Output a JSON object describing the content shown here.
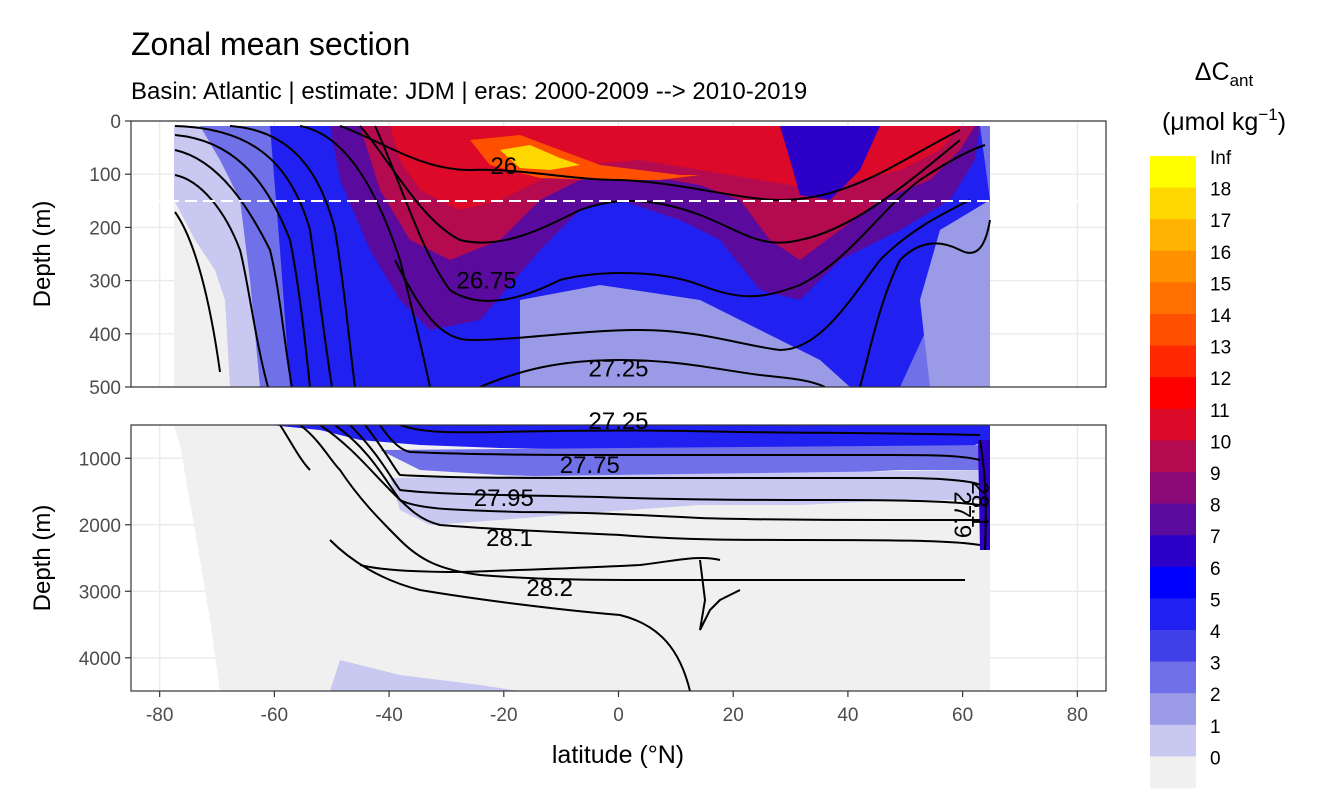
{
  "chart_data": {
    "type": "heatmap",
    "title": "Zonal mean section",
    "subtitle": "Basin: Atlantic | estimate: JDM  | eras: 2000-2009 --> 2010-2019",
    "xlabel": "latitude (°N)",
    "ylabel": "Depth (m)",
    "xlim": [
      -85,
      85
    ],
    "x_ticks": [
      -80,
      -60,
      -40,
      -20,
      0,
      20,
      40,
      60,
      80
    ],
    "x_tick_labels": [
      "-80",
      "-60",
      "-40",
      "-20",
      "0",
      "20",
      "40",
      "60",
      "80"
    ],
    "panels": [
      {
        "name": "upper",
        "ylim": [
          0,
          500
        ],
        "y_ticks": [
          0,
          100,
          200,
          300,
          400,
          500
        ],
        "y_tick_labels": [
          "0",
          "100",
          "200",
          "300",
          "400",
          "500"
        ],
        "reference_line_depth": 150
      },
      {
        "name": "lower",
        "ylim": [
          500,
          4500
        ],
        "y_ticks": [
          1000,
          2000,
          3000,
          4000
        ],
        "y_tick_labels": [
          "1000",
          "2000",
          "3000",
          "4000"
        ]
      }
    ],
    "legend": {
      "title_main": "ΔC",
      "title_sub": "ant",
      "title_unit": "(μmol kg",
      "title_unit_exp": "−1",
      "title_unit_close": ")",
      "breaks": [
        "Inf",
        "18",
        "17",
        "16",
        "15",
        "14",
        "13",
        "12",
        "11",
        "10",
        "9",
        "8",
        "7",
        "6",
        "5",
        "4",
        "3",
        "2",
        "1",
        "0"
      ],
      "colors": [
        "#FFFF00",
        "#FFD700",
        "#FFB300",
        "#FF9000",
        "#FF7000",
        "#FF5000",
        "#FF2800",
        "#FF0000",
        "#DC0A28",
        "#B40A50",
        "#8C0A78",
        "#5A0A9C",
        "#2D00C8",
        "#0000FF",
        "#2020F0",
        "#4040E8",
        "#7070E8",
        "#9A9AE6",
        "#C8C8F0",
        "#F0F0F0"
      ]
    },
    "isopycnals": [
      {
        "label": "26",
        "lat": -20,
        "depth": 85,
        "panel": "upper"
      },
      {
        "label": "26.75",
        "lat": -23,
        "depth": 300,
        "panel": "upper"
      },
      {
        "label": "27.25",
        "lat": 0,
        "depth": 465,
        "panel": "upper"
      },
      {
        "label": "27.25",
        "lat": 0,
        "depth": 440,
        "panel": "lower"
      },
      {
        "label": "27.75",
        "lat": -5,
        "depth": 1100,
        "panel": "lower"
      },
      {
        "label": "27.95",
        "lat": -20,
        "depth": 1600,
        "panel": "lower"
      },
      {
        "label": "28.1",
        "lat": -19,
        "depth": 2200,
        "panel": "lower"
      },
      {
        "label": "28.2",
        "lat": -12,
        "depth": 2950,
        "panel": "lower"
      },
      {
        "label": "28.1",
        "lat": 63,
        "depth": 1700,
        "panel": "lower"
      },
      {
        "label": "27.9",
        "lat": 60,
        "depth": 1850,
        "panel": "lower"
      }
    ],
    "data_extent": {
      "lat_min": -78,
      "lat_max": 64.5
    }
  }
}
